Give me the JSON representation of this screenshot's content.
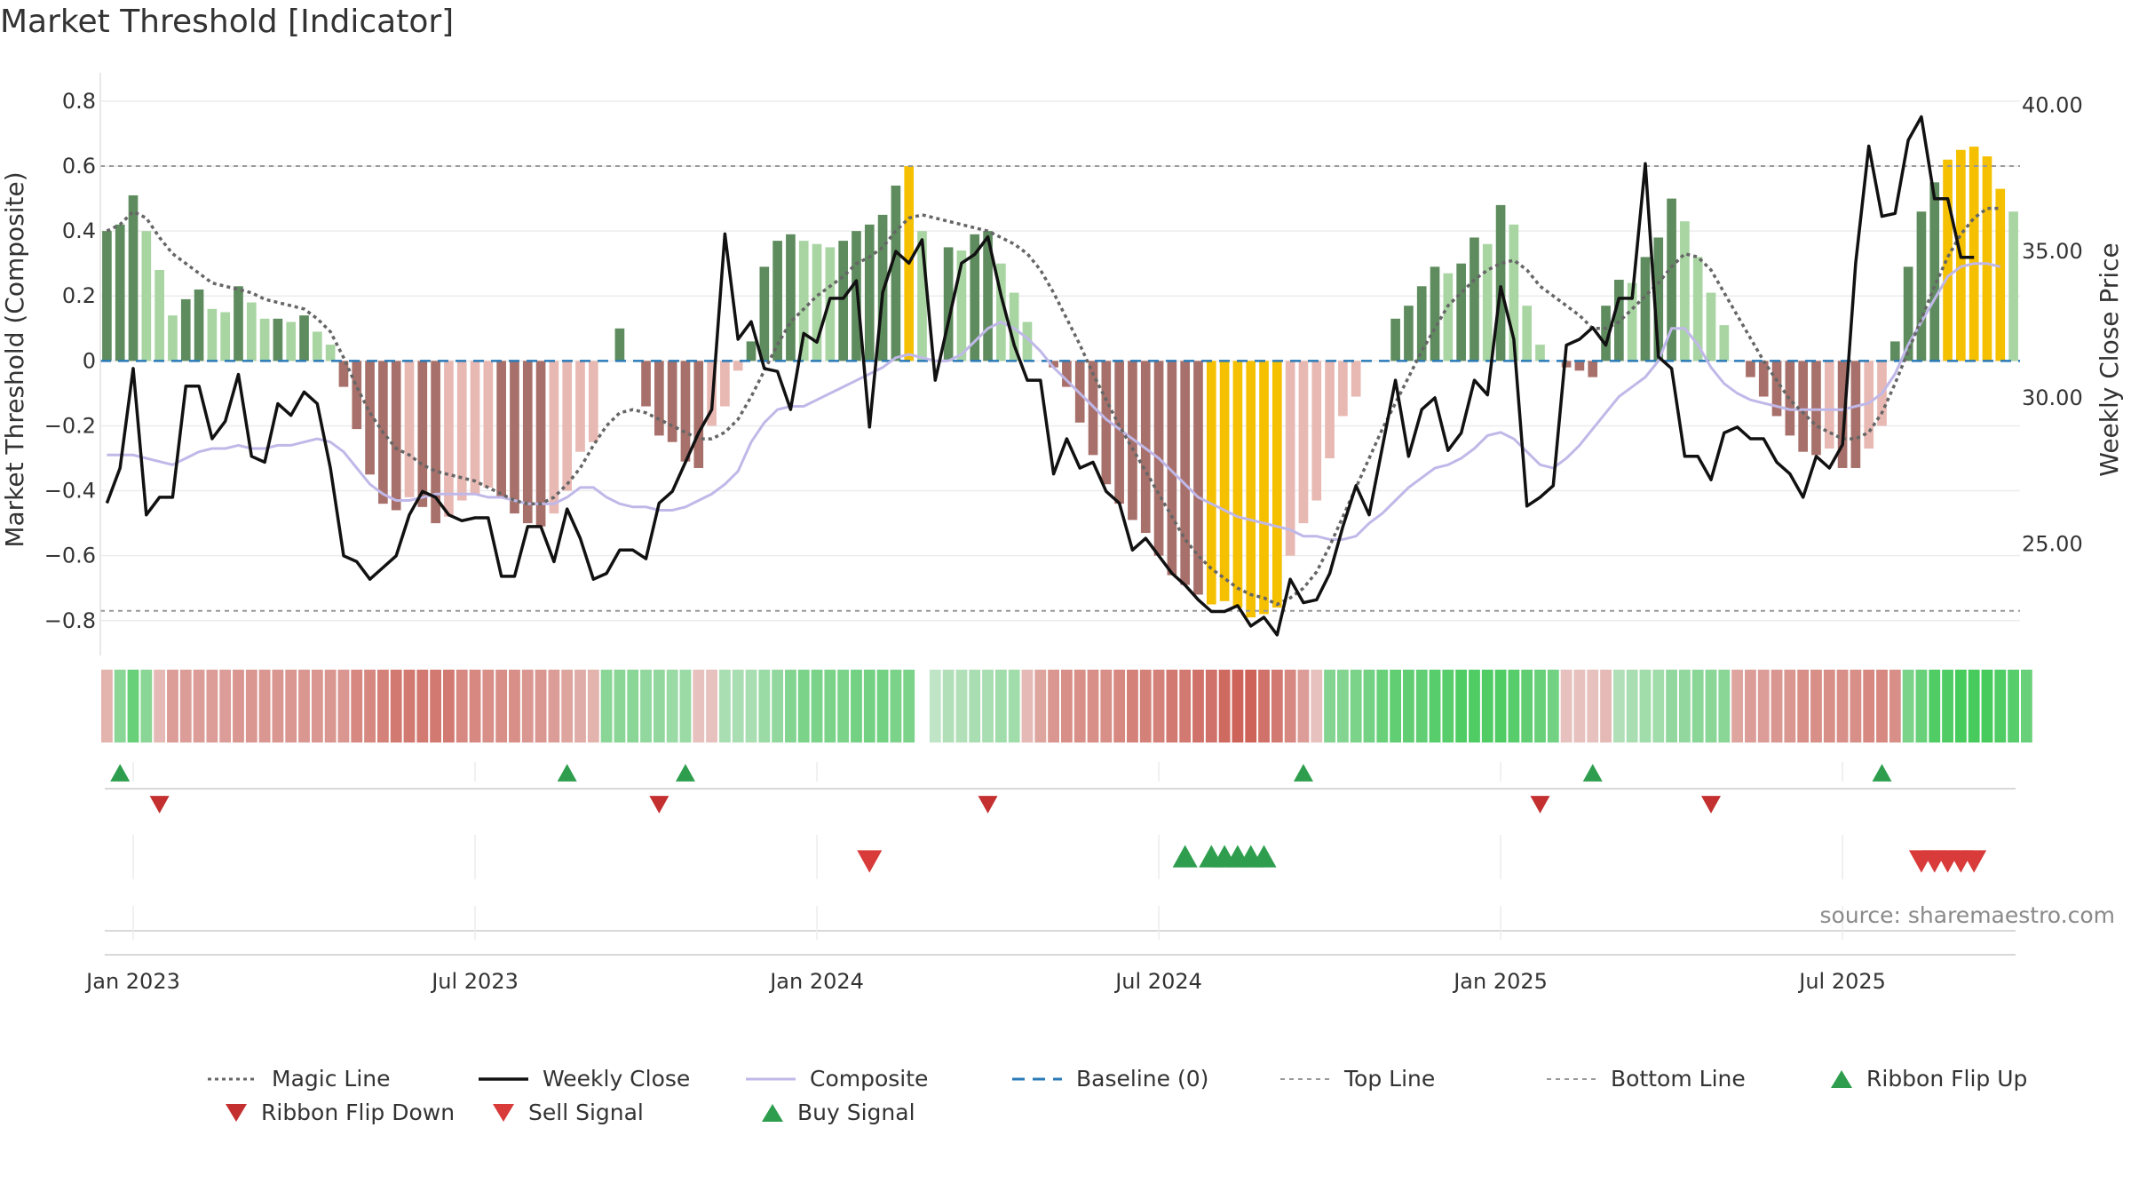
{
  "title": "Market Threshold [Indicator]",
  "source": "source: sharemaestro.com",
  "colors": {
    "dark_green": "#5e8c5e",
    "light_green": "#a8d5a2",
    "dark_red": "#a8706a",
    "light_red": "#e8b8b3",
    "gold": "#f5c000",
    "weekly_close": "#111111",
    "composite": "#c0b8e8",
    "magic": "#666666",
    "baseline": "#2a7ab8",
    "threshold_line": "#999999",
    "buy": "#2e9e4e",
    "sell": "#d93a3a"
  },
  "chart_data": {
    "type": "bar",
    "title": "Market Threshold [Indicator]",
    "ylabel": "Market Threshold (Composite)",
    "y2label": "Weekly Close Price",
    "ylim": [
      -0.88,
      0.86
    ],
    "y2lim": [
      21.5,
      40.8
    ],
    "yticks": [
      "0.8",
      "0.6",
      "0.4",
      "0.2",
      "0",
      "−0.2",
      "−0.4",
      "−0.6",
      "−0.8"
    ],
    "ytick_values": [
      0.8,
      0.6,
      0.4,
      0.2,
      0,
      -0.2,
      -0.4,
      -0.6,
      -0.8
    ],
    "y2ticks": [
      "40.00",
      "35.00",
      "30.00",
      "25.00"
    ],
    "y2tick_values": [
      40,
      35,
      30,
      25
    ],
    "xticks": [
      "Jan 2023",
      "Jul 2023",
      "Jan 2024",
      "Jul 2024",
      "Jan 2025",
      "Jul 2025"
    ],
    "xtick_weeks": [
      2.5,
      28.5,
      54.5,
      80.5,
      106.5,
      132.5
    ],
    "top_line": 0.6,
    "bottom_line": -0.77,
    "composite_bars": [
      0.4,
      0.42,
      0.51,
      0.4,
      0.28,
      0.14,
      0.19,
      0.22,
      0.16,
      0.15,
      0.23,
      0.18,
      0.13,
      0.13,
      0.12,
      0.14,
      0.09,
      0.05,
      -0.08,
      -0.21,
      -0.35,
      -0.44,
      -0.46,
      -0.42,
      -0.45,
      -0.5,
      -0.48,
      -0.43,
      -0.41,
      -0.39,
      -0.42,
      -0.47,
      -0.5,
      -0.51,
      -0.47,
      -0.4,
      -0.28,
      -0.25,
      0,
      0.1,
      0,
      -0.14,
      -0.23,
      -0.25,
      -0.31,
      -0.33,
      -0.2,
      -0.14,
      -0.03,
      0.06,
      0.29,
      0.37,
      0.39,
      0.37,
      0.36,
      0.35,
      0.37,
      0.4,
      0.42,
      0.45,
      0.54,
      0.6,
      0.4,
      0,
      0.35,
      0.34,
      0.39,
      0.4,
      0.3,
      0.21,
      0.12,
      0,
      -0.02,
      -0.08,
      -0.19,
      -0.29,
      -0.38,
      -0.44,
      -0.49,
      -0.53,
      -0.6,
      -0.66,
      -0.69,
      -0.72,
      -0.75,
      -0.74,
      -0.76,
      -0.79,
      -0.78,
      -0.76,
      -0.6,
      -0.5,
      -0.43,
      -0.3,
      -0.17,
      -0.11,
      0,
      0,
      0.13,
      0.17,
      0.23,
      0.29,
      0.27,
      0.3,
      0.38,
      0.36,
      0.48,
      0.42,
      0.17,
      0.05,
      0,
      -0.02,
      -0.03,
      -0.05,
      0.17,
      0.25,
      0.24,
      0.32,
      0.38,
      0.5,
      0.43,
      0.32,
      0.21,
      0.11,
      0,
      -0.05,
      -0.11,
      -0.17,
      -0.23,
      -0.28,
      -0.29,
      -0.27,
      -0.33,
      -0.33,
      -0.27,
      -0.2,
      0.06,
      0.29,
      0.46,
      0.55,
      0.62,
      0.65,
      0.66,
      0.63,
      0.53,
      0.46
    ],
    "weekly_close": [
      26.4,
      27.6,
      31.0,
      26.0,
      26.6,
      26.6,
      30.4,
      30.4,
      28.6,
      29.2,
      30.8,
      28.0,
      27.8,
      29.8,
      29.4,
      30.2,
      29.8,
      27.6,
      24.6,
      24.4,
      23.8,
      24.2,
      24.6,
      26.0,
      26.8,
      26.6,
      26.0,
      25.8,
      25.9,
      25.9,
      23.9,
      23.9,
      25.6,
      25.6,
      24.4,
      26.2,
      25.2,
      23.8,
      24.0,
      24.8,
      24.8,
      24.5,
      26.4,
      26.8,
      27.8,
      28.8,
      29.6,
      35.6,
      32.0,
      32.6,
      31.0,
      30.9,
      29.6,
      32.2,
      31.9,
      33.4,
      33.4,
      34.0,
      29.0,
      33.6,
      35.0,
      34.6,
      35.4,
      30.6,
      32.6,
      34.6,
      34.9,
      35.5,
      33.5,
      31.8,
      30.6,
      30.6,
      27.4,
      28.6,
      27.6,
      27.8,
      26.8,
      26.4,
      24.8,
      25.2,
      24.6,
      24.0,
      23.6,
      23.1,
      22.7,
      22.7,
      22.9,
      22.2,
      22.5,
      21.9,
      23.8,
      23.0,
      23.1,
      24.0,
      25.6,
      27.0,
      26.0,
      28.3,
      30.6,
      28.0,
      29.6,
      30.0,
      28.2,
      28.8,
      30.6,
      30.1,
      33.8,
      32.0,
      26.3,
      26.6,
      27.0,
      31.8,
      32.0,
      32.4,
      31.8,
      33.4,
      33.4,
      38.0,
      31.4,
      31.0,
      28.0,
      28.0,
      27.2,
      28.8,
      29.0,
      28.6,
      28.6,
      27.8,
      27.4,
      26.6,
      28.0,
      27.6,
      28.4,
      34.6,
      38.6,
      36.2,
      36.3,
      38.8,
      39.6,
      36.8,
      36.8,
      34.8,
      34.8
    ],
    "composite_line": [
      -0.29,
      -0.29,
      -0.29,
      -0.3,
      -0.31,
      -0.32,
      -0.3,
      -0.28,
      -0.27,
      -0.27,
      -0.26,
      -0.27,
      -0.27,
      -0.26,
      -0.26,
      -0.25,
      -0.24,
      -0.25,
      -0.28,
      -0.33,
      -0.38,
      -0.41,
      -0.43,
      -0.43,
      -0.42,
      -0.41,
      -0.41,
      -0.41,
      -0.41,
      -0.42,
      -0.42,
      -0.43,
      -0.44,
      -0.44,
      -0.44,
      -0.42,
      -0.39,
      -0.39,
      -0.42,
      -0.44,
      -0.45,
      -0.45,
      -0.46,
      -0.46,
      -0.45,
      -0.43,
      -0.41,
      -0.38,
      -0.34,
      -0.25,
      -0.19,
      -0.15,
      -0.14,
      -0.14,
      -0.12,
      -0.1,
      -0.08,
      -0.06,
      -0.04,
      -0.02,
      0.01,
      0.02,
      0.01,
      0.0,
      0.0,
      0.02,
      0.06,
      0.1,
      0.12,
      0.1,
      0.07,
      0.03,
      -0.02,
      -0.06,
      -0.1,
      -0.14,
      -0.18,
      -0.21,
      -0.24,
      -0.27,
      -0.3,
      -0.34,
      -0.38,
      -0.42,
      -0.44,
      -0.46,
      -0.48,
      -0.49,
      -0.5,
      -0.51,
      -0.52,
      -0.54,
      -0.54,
      -0.55,
      -0.55,
      -0.54,
      -0.5,
      -0.47,
      -0.43,
      -0.39,
      -0.36,
      -0.33,
      -0.32,
      -0.3,
      -0.27,
      -0.23,
      -0.22,
      -0.24,
      -0.28,
      -0.32,
      -0.33,
      -0.3,
      -0.26,
      -0.21,
      -0.16,
      -0.11,
      -0.08,
      -0.05,
      0.0,
      0.1,
      0.1,
      0.05,
      -0.02,
      -0.07,
      -0.1,
      -0.12,
      -0.13,
      -0.14,
      -0.15,
      -0.15,
      -0.15,
      -0.15,
      -0.15,
      -0.14,
      -0.13,
      -0.1,
      -0.04,
      0.05,
      0.12,
      0.19,
      0.26,
      0.29,
      0.3,
      0.3,
      0.29
    ],
    "magic_line": [
      0.4,
      0.42,
      0.46,
      0.44,
      0.38,
      0.33,
      0.3,
      0.27,
      0.24,
      0.23,
      0.22,
      0.21,
      0.19,
      0.18,
      0.17,
      0.16,
      0.13,
      0.09,
      0.01,
      -0.08,
      -0.16,
      -0.22,
      -0.27,
      -0.29,
      -0.32,
      -0.34,
      -0.35,
      -0.36,
      -0.37,
      -0.39,
      -0.41,
      -0.43,
      -0.44,
      -0.44,
      -0.42,
      -0.38,
      -0.33,
      -0.26,
      -0.2,
      -0.16,
      -0.15,
      -0.16,
      -0.18,
      -0.2,
      -0.22,
      -0.24,
      -0.24,
      -0.22,
      -0.18,
      -0.11,
      -0.03,
      0.05,
      0.12,
      0.16,
      0.2,
      0.23,
      0.26,
      0.3,
      0.32,
      0.35,
      0.4,
      0.44,
      0.45,
      0.44,
      0.43,
      0.42,
      0.41,
      0.4,
      0.38,
      0.36,
      0.33,
      0.28,
      0.21,
      0.13,
      0.05,
      -0.04,
      -0.12,
      -0.2,
      -0.27,
      -0.34,
      -0.41,
      -0.48,
      -0.55,
      -0.6,
      -0.64,
      -0.67,
      -0.7,
      -0.72,
      -0.73,
      -0.75,
      -0.73,
      -0.7,
      -0.65,
      -0.57,
      -0.48,
      -0.39,
      -0.3,
      -0.21,
      -0.13,
      -0.05,
      0.03,
      0.1,
      0.17,
      0.21,
      0.25,
      0.28,
      0.3,
      0.31,
      0.28,
      0.23,
      0.2,
      0.17,
      0.14,
      0.1,
      0.1,
      0.12,
      0.16,
      0.2,
      0.24,
      0.29,
      0.33,
      0.32,
      0.28,
      0.21,
      0.14,
      0.07,
      0.0,
      -0.06,
      -0.12,
      -0.16,
      -0.2,
      -0.22,
      -0.24,
      -0.24,
      -0.22,
      -0.16,
      -0.07,
      0.03,
      0.13,
      0.23,
      0.32,
      0.39,
      0.44,
      0.47,
      0.47
    ],
    "ribbon": [
      -0.3,
      0.5,
      0.7,
      0.5,
      -0.25,
      -0.45,
      -0.45,
      -0.45,
      -0.45,
      -0.45,
      -0.5,
      -0.5,
      -0.5,
      -0.5,
      -0.5,
      -0.5,
      -0.5,
      -0.5,
      -0.5,
      -0.6,
      -0.6,
      -0.65,
      -0.7,
      -0.7,
      -0.7,
      -0.7,
      -0.7,
      -0.6,
      -0.6,
      -0.55,
      -0.55,
      -0.55,
      -0.5,
      -0.5,
      -0.45,
      -0.4,
      -0.35,
      -0.3,
      0.5,
      0.5,
      0.5,
      0.45,
      0.45,
      0.4,
      0.4,
      -0.2,
      -0.2,
      0.3,
      0.3,
      0.3,
      0.4,
      0.45,
      0.55,
      0.6,
      0.6,
      0.6,
      0.6,
      0.65,
      0.65,
      0.65,
      0.6,
      0.6,
      null,
      0.15,
      0.25,
      0.25,
      0.3,
      0.3,
      0.35,
      0.35,
      -0.25,
      -0.4,
      -0.5,
      -0.55,
      -0.55,
      -0.55,
      -0.55,
      -0.6,
      -0.65,
      -0.65,
      -0.65,
      -0.7,
      -0.7,
      -0.75,
      -0.75,
      -0.8,
      -0.85,
      -0.85,
      -0.75,
      -0.7,
      -0.6,
      -0.45,
      -0.2,
      0.55,
      0.55,
      0.6,
      0.65,
      0.7,
      0.75,
      0.75,
      0.75,
      0.8,
      0.8,
      0.85,
      0.85,
      0.85,
      0.85,
      0.8,
      0.75,
      0.7,
      0.65,
      -0.2,
      -0.2,
      -0.2,
      -0.25,
      0.25,
      0.3,
      0.35,
      0.35,
      0.45,
      0.45,
      0.5,
      0.5,
      0.5,
      -0.4,
      -0.45,
      -0.45,
      -0.5,
      -0.5,
      -0.55,
      -0.55,
      -0.55,
      -0.55,
      -0.55,
      -0.6,
      -0.6,
      -0.55,
      0.6,
      0.7,
      0.85,
      0.85,
      0.9,
      0.9,
      0.9,
      0.85,
      0.8,
      0.7
    ],
    "gold_weeks": [
      61,
      84,
      85,
      86,
      87,
      88,
      89,
      140,
      141,
      142,
      143,
      144
    ],
    "ribbon_flip_up": [
      1,
      35,
      44,
      91,
      113,
      135
    ],
    "ribbon_flip_down": [
      4,
      42,
      67,
      109,
      122
    ],
    "sell_signals": [
      58,
      138,
      139,
      140,
      141,
      142
    ],
    "buy_signals": [
      82,
      84,
      85,
      86,
      87,
      88
    ]
  },
  "legend": [
    {
      "label": "Magic Line",
      "kind": "dotted",
      "color": "#666666"
    },
    {
      "label": "Weekly Close",
      "kind": "solid",
      "color": "#111111"
    },
    {
      "label": "Composite",
      "kind": "solid-thin",
      "color": "#c0b8e8"
    },
    {
      "label": "Baseline (0)",
      "kind": "dashed",
      "color": "#2a7ab8"
    },
    {
      "label": "Top Line",
      "kind": "dashed-thin",
      "color": "#999999"
    },
    {
      "label": "Bottom Line",
      "kind": "dashed-thin",
      "color": "#999999"
    },
    {
      "label": "Ribbon Flip Up",
      "kind": "tri-up",
      "color": "#2e9e4e"
    },
    {
      "label": "Ribbon Flip Down",
      "kind": "tri-down",
      "color": "#c43030"
    },
    {
      "label": "Sell Signal",
      "kind": "tri-down",
      "color": "#d93a3a"
    },
    {
      "label": "Buy Signal",
      "kind": "tri-up",
      "color": "#2e9e4e"
    }
  ]
}
